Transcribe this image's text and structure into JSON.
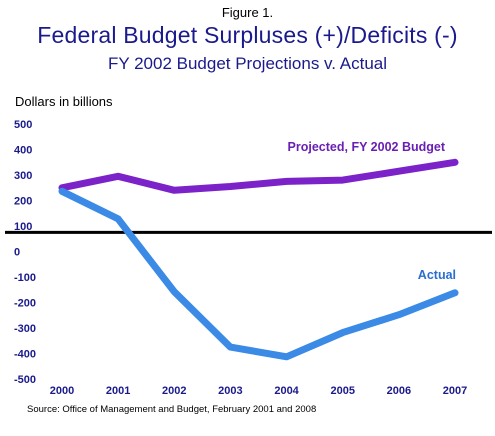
{
  "figure_label": "Figure 1.",
  "title": "Federal Budget Surpluses (+)/Deficits (-)",
  "subtitle": "FY 2002 Budget Projections v.  Actual",
  "source": "Source: Office of Management and Budget, February 2001 and 2008",
  "colors": {
    "title": "#1a1a8c",
    "ticks": "#1a1a8c",
    "projected": "#7b22c9",
    "projected_label": "#6a1fb4",
    "actual": "#3a8ae6",
    "actual_label": "#2a6fd0",
    "reference_line": "#000000"
  },
  "chart_data": {
    "type": "line",
    "title": "Federal Budget Surpluses (+)/Deficits (-)",
    "subtitle": "FY 2002 Budget Projections v.  Actual",
    "ylabel": "Dollars in billions",
    "xlabel": "",
    "x": [
      "2000",
      "2001",
      "2002",
      "2003",
      "2004",
      "2005",
      "2006",
      "2007"
    ],
    "ylim": [
      -500,
      500
    ],
    "y_ticks": [
      "500",
      "400",
      "300",
      "200",
      "100",
      "0",
      "-100",
      "-200",
      "-300",
      "-400",
      "-500"
    ],
    "reference_line_value": 75,
    "grid": false,
    "legend": "inline labels",
    "series": [
      {
        "name": "Projected, FY 2002 Budget",
        "values": [
          250,
          295,
          240,
          255,
          275,
          280,
          315,
          350
        ]
      },
      {
        "name": "Actual",
        "values": [
          236,
          128,
          -158,
          -375,
          -413,
          -318,
          -248,
          -162
        ]
      }
    ]
  }
}
